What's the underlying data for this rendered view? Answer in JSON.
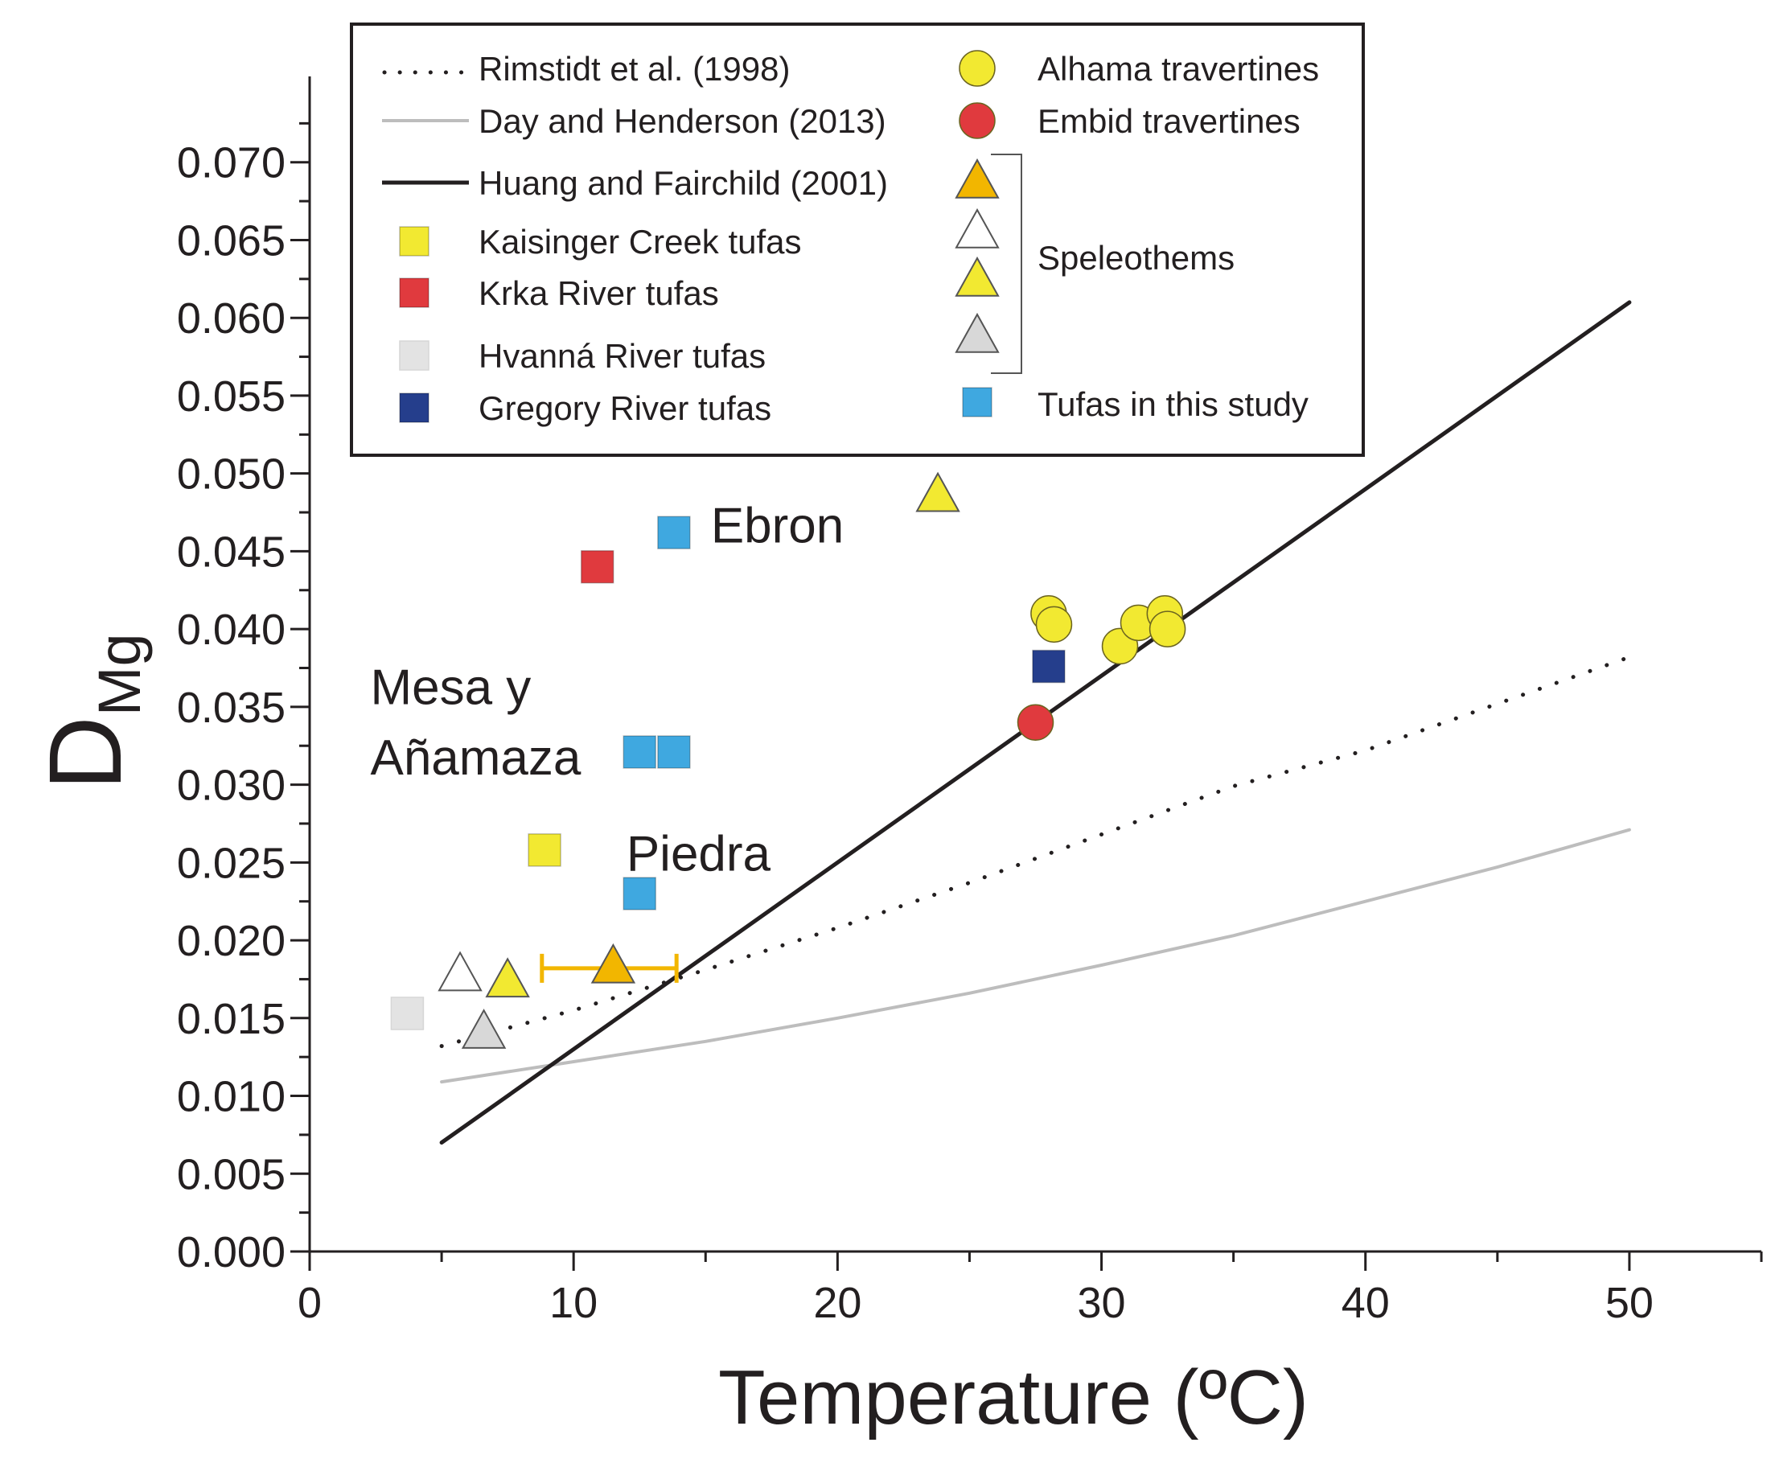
{
  "chart_data": {
    "type": "scatter",
    "xlabel": "Temperature (ºC)",
    "ylabel": "D",
    "ylabel_subscript": "Mg",
    "xlim": [
      0,
      55
    ],
    "ylim": [
      0,
      0.075
    ],
    "x_ticks": [
      "0",
      "10",
      "20",
      "30",
      "40",
      "50"
    ],
    "y_ticks": [
      "0.000",
      "0.005",
      "0.010",
      "0.015",
      "0.020",
      "0.025",
      "0.030",
      "0.035",
      "0.040",
      "0.045",
      "0.050",
      "0.055",
      "0.060",
      "0.065",
      "0.070"
    ],
    "grid": false,
    "legend_position": "top-center",
    "colors": {
      "yellow": "#f2e931",
      "red": "#e03a3e",
      "light_gray": "#e3e3e3",
      "navy": "#253e8c",
      "blue": "#3fa8e0",
      "amber": "#f2b600",
      "white": "#ffffff",
      "gray": "#d8d8d8",
      "line_gray": "#bdbdbd",
      "black": "#231f20"
    },
    "lines": [
      {
        "name": "Rimstidt et al. (1998)",
        "style": "dotted",
        "color": "#231f20",
        "x": [
          5,
          10,
          15,
          20,
          25,
          30,
          35,
          40,
          45,
          50
        ],
        "y": [
          0.0132,
          0.0155,
          0.0181,
          0.0208,
          0.0237,
          0.0268,
          0.0299,
          0.0322,
          0.0352,
          0.0382
        ]
      },
      {
        "name": "Day and Henderson (2013)",
        "style": "solid",
        "color": "#bdbdbd",
        "x": [
          5,
          10,
          15,
          20,
          25,
          30,
          35,
          40,
          45,
          50
        ],
        "y": [
          0.0109,
          0.0122,
          0.0135,
          0.015,
          0.0166,
          0.0184,
          0.0203,
          0.0225,
          0.0247,
          0.0271
        ]
      },
      {
        "name": "Huang and Fairchild (2001)",
        "style": "solid",
        "color": "#231f20",
        "x": [
          5,
          50
        ],
        "y": [
          0.007,
          0.061
        ]
      }
    ],
    "series": [
      {
        "name": "Alhama travertines",
        "marker": "circle",
        "color": "#f2e931",
        "points": [
          [
            28.0,
            0.041
          ],
          [
            28.2,
            0.0403
          ],
          [
            30.7,
            0.0389
          ],
          [
            31.4,
            0.0404
          ],
          [
            32.4,
            0.041
          ],
          [
            32.5,
            0.04
          ]
        ]
      },
      {
        "name": "Embid travertines",
        "marker": "circle",
        "color": "#e03a3e",
        "points": [
          [
            27.5,
            0.034
          ]
        ]
      },
      {
        "name": "Speleothems (amber)",
        "marker": "triangle",
        "color": "#f2b600",
        "points": [
          [
            11.5,
            0.0182
          ]
        ],
        "x_error": [
          [
            8.8,
            13.9
          ]
        ]
      },
      {
        "name": "Speleothems (white)",
        "marker": "triangle",
        "color": "#ffffff",
        "points": [
          [
            5.7,
            0.0177
          ]
        ]
      },
      {
        "name": "Speleothems (yellow)",
        "marker": "triangle",
        "color": "#f2e931",
        "points": [
          [
            7.5,
            0.0173
          ],
          [
            23.8,
            0.0485
          ]
        ]
      },
      {
        "name": "Speleothems (gray)",
        "marker": "triangle",
        "color": "#d8d8d8",
        "points": [
          [
            6.6,
            0.014
          ]
        ]
      },
      {
        "name": "Kaisinger Creek tufas",
        "marker": "square",
        "color": "#f2e931",
        "points": [
          [
            8.9,
            0.0258
          ]
        ]
      },
      {
        "name": "Krka River tufas",
        "marker": "square",
        "color": "#e03a3e",
        "points": [
          [
            10.9,
            0.044
          ]
        ]
      },
      {
        "name": "Hvanná River tufas",
        "marker": "square",
        "color": "#e3e3e3",
        "points": [
          [
            3.7,
            0.0153
          ]
        ]
      },
      {
        "name": "Gregory River tufas",
        "marker": "square",
        "color": "#253e8c",
        "points": [
          [
            28.0,
            0.0376
          ]
        ]
      },
      {
        "name": "Tufas in this study",
        "marker": "square",
        "color": "#3fa8e0",
        "points": [
          [
            13.8,
            0.0462
          ],
          [
            12.5,
            0.0321
          ],
          [
            13.8,
            0.0321
          ],
          [
            12.5,
            0.023
          ]
        ]
      }
    ],
    "annotations": [
      {
        "text": "Ebron",
        "x": 15.2,
        "y": 0.0467
      },
      {
        "text": "Mesa y",
        "x": 2.3,
        "y": 0.0363
      },
      {
        "text": "Añamaza",
        "x": 2.3,
        "y": 0.0318
      },
      {
        "text": "Piedra",
        "x": 12.0,
        "y": 0.0256
      }
    ],
    "legend": {
      "left": [
        {
          "label": "Rimstidt et al. (1998)",
          "symbol": "dotted-line",
          "color": "#231f20"
        },
        {
          "label": "Day and Henderson (2013)",
          "symbol": "gray-line",
          "color": "#bdbdbd"
        },
        {
          "label": "Huang and Fairchild (2001)",
          "symbol": "black-line",
          "color": "#231f20"
        },
        {
          "label": "Kaisinger Creek tufas",
          "symbol": "square",
          "color": "#f2e931"
        },
        {
          "label": "Krka River tufas",
          "symbol": "square",
          "color": "#e03a3e"
        },
        {
          "label": "Hvanná River tufas",
          "symbol": "square",
          "color": "#e3e3e3"
        },
        {
          "label": "Gregory River tufas",
          "symbol": "square",
          "color": "#253e8c"
        }
      ],
      "right": [
        {
          "label": "Alhama travertines",
          "symbol": "circle",
          "color": "#f2e931"
        },
        {
          "label": "Embid travertines",
          "symbol": "circle",
          "color": "#e03a3e"
        },
        {
          "label": "Speleothems",
          "symbol": "triangle-group",
          "colors": [
            "#f2b600",
            "#ffffff",
            "#f2e931",
            "#d8d8d8"
          ]
        },
        {
          "label": "Tufas in this study",
          "symbol": "square",
          "color": "#3fa8e0"
        }
      ]
    }
  }
}
